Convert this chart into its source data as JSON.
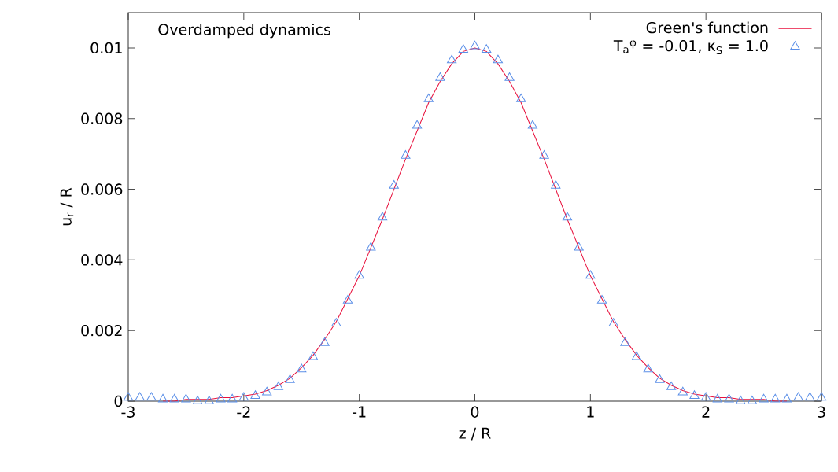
{
  "chart_data": {
    "type": "line",
    "annotations": [
      "Overdamped dynamics"
    ],
    "xlabel": "z / R",
    "ylabel": "u$_{r}$ / R",
    "x": [
      -3,
      -2.9,
      -2.8,
      -2.7,
      -2.6,
      -2.5,
      -2.4,
      -2.3,
      -2.2,
      -2.1,
      -2,
      -1.9,
      -1.8,
      -1.7,
      -1.6,
      -1.5,
      -1.4,
      -1.3,
      -1.2,
      -1.1,
      -1,
      -0.9,
      -0.8,
      -0.7,
      -0.6,
      -0.5,
      -0.4,
      -0.3,
      -0.2,
      -0.1,
      0,
      0.1,
      0.2,
      0.3,
      0.4,
      0.5,
      0.6,
      0.7,
      0.8,
      0.9,
      1,
      1.1,
      1.2,
      1.3,
      1.4,
      1.5,
      1.6,
      1.7,
      1.8,
      1.9,
      2,
      2.1,
      2.2,
      2.3,
      2.4,
      2.5,
      2.6,
      2.7,
      2.8,
      2.9,
      3
    ],
    "series": [
      {
        "name": "Green's function",
        "type": "line",
        "marker": "none",
        "color": "#e8103c",
        "values": [
          null,
          null,
          null,
          0,
          0,
          5e-05,
          5e-05,
          5e-05,
          0.0001,
          0.0001,
          0.00015,
          0.0002,
          0.0003,
          0.00045,
          0.00065,
          0.00095,
          0.0013,
          0.00175,
          0.00225,
          0.0029,
          0.00355,
          0.00435,
          0.00515,
          0.006,
          0.00685,
          0.00765,
          0.00845,
          0.00905,
          0.00955,
          0.0099,
          0.01,
          0.0099,
          0.00955,
          0.00905,
          0.00845,
          0.00765,
          0.00685,
          0.006,
          0.00515,
          0.00435,
          0.00355,
          0.0029,
          0.00225,
          0.00175,
          0.0013,
          0.00095,
          0.00065,
          0.00045,
          0.0003,
          0.0002,
          0.00015,
          0.0001,
          0.0001,
          5e-05,
          5e-05,
          5e-05,
          0,
          0,
          null,
          null,
          null
        ]
      },
      {
        "name": "T$_{a}$$^{φ}$ = -0.01, κ$_{S}$ = 1.0",
        "type": "scatter",
        "marker": "triangle",
        "color": "#5b8fe8",
        "values": [
          0.0001,
          0.0001,
          0.0001,
          5e-05,
          5e-05,
          5e-05,
          0,
          0,
          5e-05,
          5e-05,
          0.0001,
          0.00015,
          0.00025,
          0.0004,
          0.0006,
          0.0009,
          0.00125,
          0.00165,
          0.0022,
          0.00285,
          0.00355,
          0.00435,
          0.0052,
          0.0061,
          0.00695,
          0.0078,
          0.00855,
          0.00915,
          0.00965,
          0.00995,
          0.01005,
          0.00995,
          0.00965,
          0.00915,
          0.00855,
          0.0078,
          0.00695,
          0.0061,
          0.0052,
          0.00435,
          0.00355,
          0.00285,
          0.0022,
          0.00165,
          0.00125,
          0.0009,
          0.0006,
          0.0004,
          0.00025,
          0.00015,
          0.0001,
          5e-05,
          5e-05,
          0,
          0,
          5e-05,
          5e-05,
          5e-05,
          0.0001,
          0.0001,
          0.0001
        ]
      }
    ],
    "xlim": [
      -3,
      3
    ],
    "ylim": [
      0,
      0.011
    ],
    "xticks": [
      -3,
      -2,
      -1,
      0,
      1,
      2,
      3
    ],
    "yticks": [
      0,
      0.002,
      0.004,
      0.006,
      0.008,
      0.01
    ],
    "legend": "top right"
  }
}
